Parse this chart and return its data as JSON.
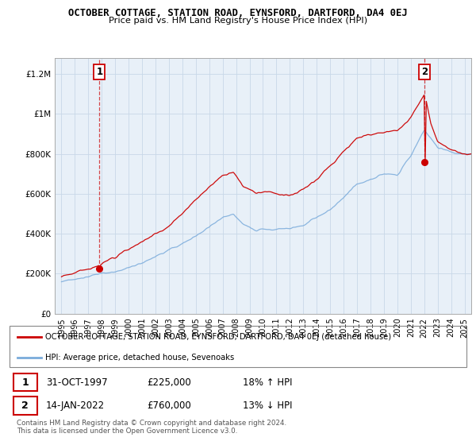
{
  "title": "OCTOBER COTTAGE, STATION ROAD, EYNSFORD, DARTFORD, DA4 0EJ",
  "subtitle": "Price paid vs. HM Land Registry's House Price Index (HPI)",
  "ylabel_ticks": [
    "£0",
    "£200K",
    "£400K",
    "£600K",
    "£800K",
    "£1M",
    "£1.2M"
  ],
  "ytick_vals": [
    0,
    200000,
    400000,
    600000,
    800000,
    1000000,
    1200000
  ],
  "ylim": [
    0,
    1280000
  ],
  "xlim_start": 1994.5,
  "xlim_end": 2025.5,
  "sale1_x": 1997.83,
  "sale1_y": 225000,
  "sale1_label": "1",
  "sale2_x": 2022.04,
  "sale2_y": 760000,
  "sale2_label": "2",
  "red_color": "#cc0000",
  "blue_color": "#7aabdb",
  "grid_color": "#c8d8e8",
  "bg_color": "#dde8f0",
  "plot_bg": "#e8f0f8",
  "legend_text_red": "OCTOBER COTTAGE, STATION ROAD, EYNSFORD, DARTFORD, DA4 0EJ (detached house)",
  "legend_text_blue": "HPI: Average price, detached house, Sevenoaks",
  "footer": "Contains HM Land Registry data © Crown copyright and database right 2024.\nThis data is licensed under the Open Government Licence v3.0.",
  "xtick_years": [
    1995,
    1996,
    1997,
    1998,
    1999,
    2000,
    2001,
    2002,
    2003,
    2004,
    2005,
    2006,
    2007,
    2008,
    2009,
    2010,
    2011,
    2012,
    2013,
    2014,
    2015,
    2016,
    2017,
    2018,
    2019,
    2020,
    2021,
    2022,
    2023,
    2024,
    2025
  ]
}
